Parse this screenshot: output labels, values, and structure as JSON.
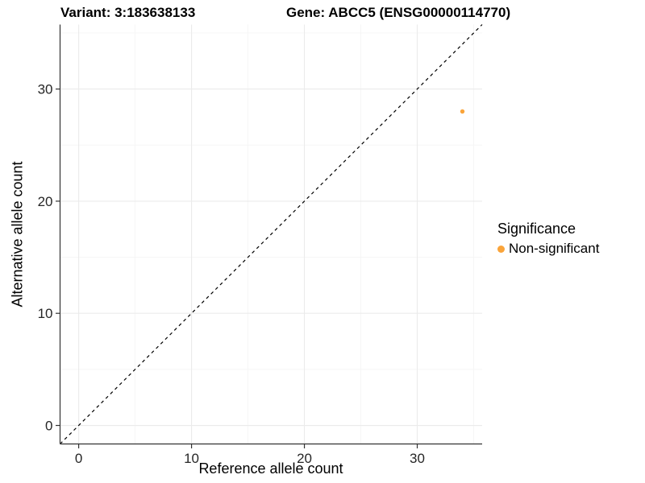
{
  "titles": {
    "variant": "Variant: 3:183638133",
    "gene": "Gene: ABCC5 (ENSG00000114770)"
  },
  "chart_data": {
    "type": "scatter",
    "xlabel": "Reference allele count",
    "ylabel": "Alternative allele count",
    "xlim": [
      -1.65,
      35.75
    ],
    "ylim": [
      -1.65,
      35.75
    ],
    "x_major_ticks": [
      0,
      10,
      20,
      30
    ],
    "y_major_ticks": [
      0,
      10,
      20,
      30
    ],
    "x_minor_ticks": [
      5,
      15,
      25,
      35
    ],
    "y_minor_ticks": [
      5,
      15,
      25,
      35
    ],
    "grid": true,
    "legend_position": "right",
    "identity_line": {
      "slope": 1,
      "intercept": 0,
      "style": "dashed",
      "color": "#000000"
    },
    "series": [
      {
        "name": "Non-significant",
        "color": "#FAA43A",
        "points": [
          {
            "x": 34,
            "y": 28
          }
        ]
      }
    ],
    "legend": {
      "title": "Significance",
      "entries": [
        {
          "label": "Non-significant",
          "color": "#FAA43A"
        }
      ]
    }
  },
  "style": {
    "grid_major_color": "#EBEBEB",
    "grid_minor_color": "#F5F5F5",
    "axis_color": "#333333",
    "tick_label_color": "#262626",
    "text_color": "#000000",
    "background": "#FFFFFF"
  }
}
